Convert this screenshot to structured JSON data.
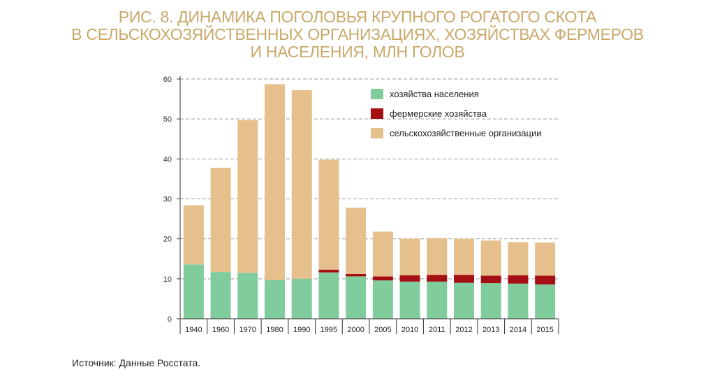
{
  "chart_data": {
    "type": "bar",
    "stacked": true,
    "title_lines": [
      "РИС. 8. ДИНАМИКА ПОГОЛОВЬЯ КРУПНОГО РОГАТОГО СКОТА",
      "В СЕЛЬСКОХОЗЯЙСТВЕННЫХ ОРГАНИЗАЦИЯХ, ХОЗЯЙСТВАХ ФЕРМЕРОВ",
      "И НАСЕЛЕНИЯ, МЛН ГОЛОВ"
    ],
    "categories": [
      "1940",
      "1960",
      "1970",
      "1980",
      "1990",
      "1995",
      "2000",
      "2005",
      "2010",
      "2011",
      "2012",
      "2013",
      "2014",
      "2015"
    ],
    "series": [
      {
        "name": "хозяйства населения",
        "color": "#80cc9d",
        "values": [
          13.6,
          11.7,
          11.5,
          9.7,
          10.0,
          11.6,
          10.6,
          9.6,
          9.3,
          9.3,
          9.0,
          8.9,
          8.8,
          8.6
        ]
      },
      {
        "name": "фермерские хозяйства",
        "color": "#a50f14",
        "values": [
          0,
          0,
          0,
          0,
          0,
          0.7,
          0.6,
          1.0,
          1.6,
          1.7,
          2.0,
          1.9,
          2.1,
          2.2
        ]
      },
      {
        "name": "сельскохозяйственные организации",
        "color": "#e5c08c",
        "values": [
          14.8,
          26.1,
          38.2,
          49.0,
          47.2,
          27.5,
          16.6,
          11.2,
          9.1,
          9.2,
          9.0,
          8.8,
          8.3,
          8.3
        ]
      }
    ],
    "ylim": [
      0,
      60
    ],
    "yticks": [
      0,
      10,
      20,
      30,
      40,
      50,
      60
    ],
    "grid": "dashed horizontal",
    "legend_position": "top-right"
  },
  "source_note": "Источник: Данные Росстата."
}
